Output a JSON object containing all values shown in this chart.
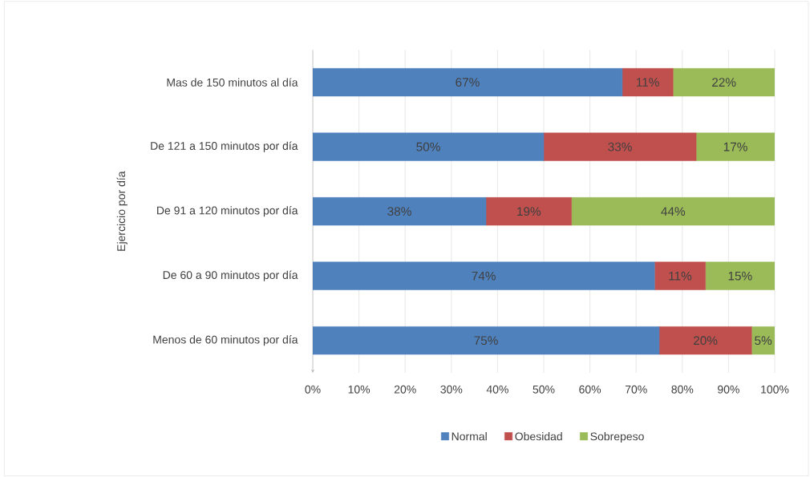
{
  "chart_data": {
    "type": "bar",
    "orientation": "horizontal",
    "stacked": true,
    "ylabel": "Ejercicio por día",
    "categories": [
      "Mas de 150 minutos al día",
      "De 121 a 150 minutos por día",
      "De 91 a 120 minutos por día",
      "De 60 a 90 minutos por día",
      "Menos de 60 minutos por día"
    ],
    "series": [
      {
        "name": "Normal",
        "color": "#4f81bd",
        "values": [
          67,
          50,
          37.5,
          74,
          75
        ],
        "value_labels": [
          "67%",
          "50%",
          "38%",
          "74%",
          "75%"
        ]
      },
      {
        "name": "Obesidad",
        "color": "#c0504d",
        "values": [
          11,
          33,
          18.5,
          11,
          20
        ],
        "value_labels": [
          "11%",
          "33%",
          "19%",
          "11%",
          "20%"
        ]
      },
      {
        "name": "Sobrepeso",
        "color": "#9bbb59",
        "values": [
          22,
          17,
          44,
          15,
          5
        ],
        "value_labels": [
          "22%",
          "17%",
          "44%",
          "15%",
          "5%"
        ]
      }
    ],
    "xlim": [
      0,
      100
    ],
    "xticks": [
      {
        "value": 0,
        "label": "0%"
      },
      {
        "value": 10,
        "label": "10%"
      },
      {
        "value": 20,
        "label": "20%"
      },
      {
        "value": 30,
        "label": "30%"
      },
      {
        "value": 40,
        "label": "40%"
      },
      {
        "value": 50,
        "label": "50%"
      },
      {
        "value": 60,
        "label": "60%"
      },
      {
        "value": 70,
        "label": "70%"
      },
      {
        "value": 80,
        "label": "80%"
      },
      {
        "value": 90,
        "label": "90%"
      },
      {
        "value": 100,
        "label": "100%"
      }
    ],
    "grid": "x",
    "legend": "bottom"
  }
}
